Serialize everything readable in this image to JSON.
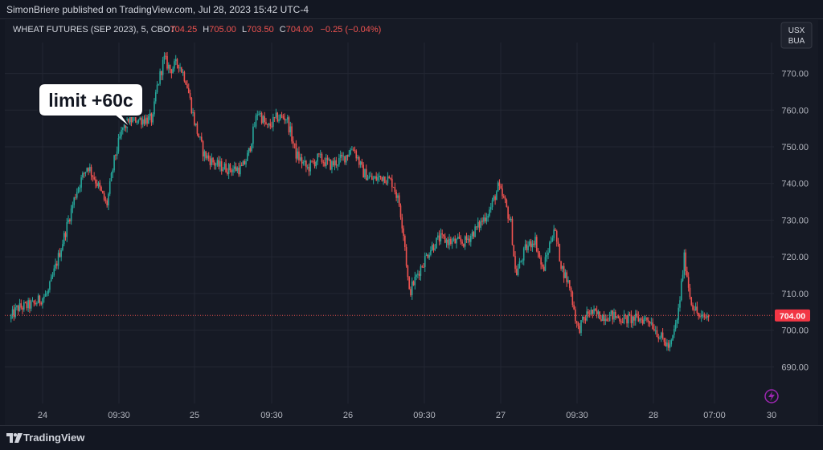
{
  "header": {
    "publish_line": "SimonBriere published on TradingView.com, Jul 28, 2023 15:42 UTC-4"
  },
  "footer": {
    "brand": "TradingView"
  },
  "symbol": {
    "name": "WHEAT FUTURES (SEP 2023), 5, CBOT",
    "o_label": "O",
    "o_value": "704.25",
    "h_label": "H",
    "h_value": "705.00",
    "l_label": "L",
    "l_value": "703.50",
    "c_label": "C",
    "c_value": "704.00",
    "change": "−0.25 (−0.04%)"
  },
  "currency": {
    "line1": "USX",
    "line2": "BUA"
  },
  "price_badge": "704.00",
  "annotation": "limit +60c",
  "colors": {
    "up": "#26a69a",
    "down": "#ef5350",
    "grid": "#232733",
    "text": "#b2b5be"
  },
  "chart_data": {
    "type": "candlestick",
    "x_tick_labels": [
      "24",
      "09:30",
      "25",
      "09:30",
      "26",
      "09:30",
      "27",
      "09:30",
      "28",
      "07:00",
      "30"
    ],
    "y_tick_labels": [
      "690.00",
      "700.00",
      "710.00",
      "720.00",
      "730.00",
      "740.00",
      "750.00",
      "760.00",
      "770.00"
    ],
    "ylim": [
      680,
      778
    ],
    "last_price": 704.0,
    "close_path": [
      [
        0,
        703
      ],
      [
        0.5,
        706
      ],
      [
        1.5,
        707
      ],
      [
        2.4,
        710
      ],
      [
        3.2,
        722
      ],
      [
        4.2,
        738
      ],
      [
        4.9,
        745
      ],
      [
        5.5,
        740
      ],
      [
        6.1,
        734
      ],
      [
        6.6,
        747
      ],
      [
        7.1,
        755
      ],
      [
        7.7,
        757.5
      ],
      [
        8.4,
        757.5
      ],
      [
        9.0,
        757.5
      ],
      [
        9.2,
        765
      ],
      [
        9.7,
        774
      ],
      [
        10.1,
        771
      ],
      [
        10.6,
        773
      ],
      [
        11.1,
        768
      ],
      [
        11.6,
        757
      ],
      [
        12.2,
        748
      ],
      [
        13.0,
        745
      ],
      [
        13.8,
        744
      ],
      [
        14.6,
        744
      ],
      [
        15.0,
        748
      ],
      [
        15.6,
        760
      ],
      [
        16.2,
        755
      ],
      [
        16.8,
        758
      ],
      [
        17.4,
        758
      ],
      [
        18.0,
        748
      ],
      [
        18.7,
        744
      ],
      [
        19.4,
        747
      ],
      [
        20.2,
        745
      ],
      [
        21.0,
        747
      ],
      [
        21.6,
        750
      ],
      [
        22.2,
        743
      ],
      [
        22.8,
        741
      ],
      [
        23.5,
        742
      ],
      [
        24.1,
        740
      ],
      [
        24.5,
        734
      ],
      [
        24.8,
        725
      ],
      [
        25.1,
        710
      ],
      [
        25.7,
        716
      ],
      [
        26.4,
        722
      ],
      [
        27.0,
        725
      ],
      [
        27.8,
        724
      ],
      [
        28.6,
        724
      ],
      [
        29.4,
        728
      ],
      [
        30.2,
        733
      ],
      [
        30.7,
        739
      ],
      [
        31.1,
        735
      ],
      [
        31.5,
        729
      ],
      [
        31.8,
        715
      ],
      [
        32.4,
        722
      ],
      [
        33.0,
        725
      ],
      [
        33.5,
        716
      ],
      [
        34.2,
        728
      ],
      [
        34.7,
        717
      ],
      [
        35.2,
        712
      ],
      [
        35.7,
        700
      ],
      [
        36.4,
        705
      ],
      [
        37.0,
        704
      ],
      [
        37.8,
        704
      ],
      [
        38.6,
        703
      ],
      [
        39.5,
        703
      ],
      [
        40.2,
        703
      ],
      [
        40.9,
        698
      ],
      [
        41.5,
        695
      ],
      [
        42.0,
        704
      ],
      [
        42.4,
        720
      ],
      [
        42.8,
        708
      ],
      [
        43.4,
        703
      ],
      [
        44.0,
        704
      ]
    ]
  }
}
